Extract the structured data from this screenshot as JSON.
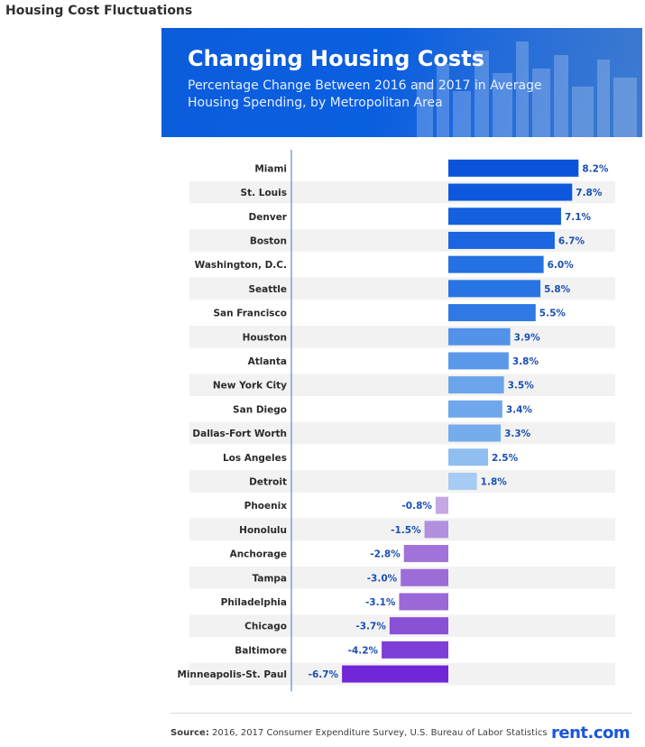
{
  "page": {
    "title": "Housing Cost Fluctuations"
  },
  "header": {
    "title": "Changing Housing Costs",
    "subtitle": "Percentage Change Between 2016 and 2017 in Average Housing Spending, by Metropolitan Area"
  },
  "footer": {
    "source_label": "Source:",
    "source_text": " 2016, 2017 Consumer Expenditure Survey, U.S. Bureau of Labor Statistics",
    "logo": "rent.com"
  },
  "chart_data": {
    "type": "bar",
    "orientation": "horizontal",
    "title": "Changing Housing Costs",
    "subtitle": "Percentage Change Between 2016 and 2017 in Average Housing Spending, by Metropolitan Area",
    "unit": "%",
    "xlim": [
      -6.7,
      8.2
    ],
    "categories": [
      "Miami",
      "St. Louis",
      "Denver",
      "Boston",
      "Washington, D.C.",
      "Seattle",
      "San Francisco",
      "Houston",
      "Atlanta",
      "New York City",
      "San Diego",
      "Dallas-Fort Worth",
      "Los Angeles",
      "Detroit",
      "Phoenix",
      "Honolulu",
      "Anchorage",
      "Tampa",
      "Philadelphia",
      "Chicago",
      "Baltimore",
      "Minneapolis-St. Paul"
    ],
    "values": [
      8.2,
      7.8,
      7.1,
      6.7,
      6.0,
      5.8,
      5.5,
      3.9,
      3.8,
      3.5,
      3.4,
      3.3,
      2.5,
      1.8,
      -0.8,
      -1.5,
      -2.8,
      -3.0,
      -3.1,
      -3.7,
      -4.2,
      -6.7
    ],
    "labels": [
      "8.2%",
      "7.8%",
      "7.1%",
      "6.7%",
      "6.0%",
      "5.8%",
      "5.5%",
      "3.9%",
      "3.8%",
      "3.5%",
      "3.4%",
      "3.3%",
      "2.5%",
      "1.8%",
      "-0.8%",
      "-1.5%",
      "-2.8%",
      "-3.0%",
      "-3.1%",
      "-3.7%",
      "-4.2%",
      "-6.7%"
    ],
    "colors": [
      "#0a53da",
      "#0d58dc",
      "#1560de",
      "#1b66e0",
      "#2570e2",
      "#2874e3",
      "#2e79e4",
      "#5292e8",
      "#5a98e9",
      "#6aa4eb",
      "#6fa7ec",
      "#75acec",
      "#8fbef0",
      "#a6ccf3",
      "#c6a7e4",
      "#b28fdf",
      "#a172d9",
      "#9c6cd8",
      "#9a68d7",
      "#8a50d6",
      "#7e3ed8",
      "#7126d8"
    ],
    "label_color_positive": "#1a4fb3",
    "label_color_negative": "#1a4fb3"
  }
}
